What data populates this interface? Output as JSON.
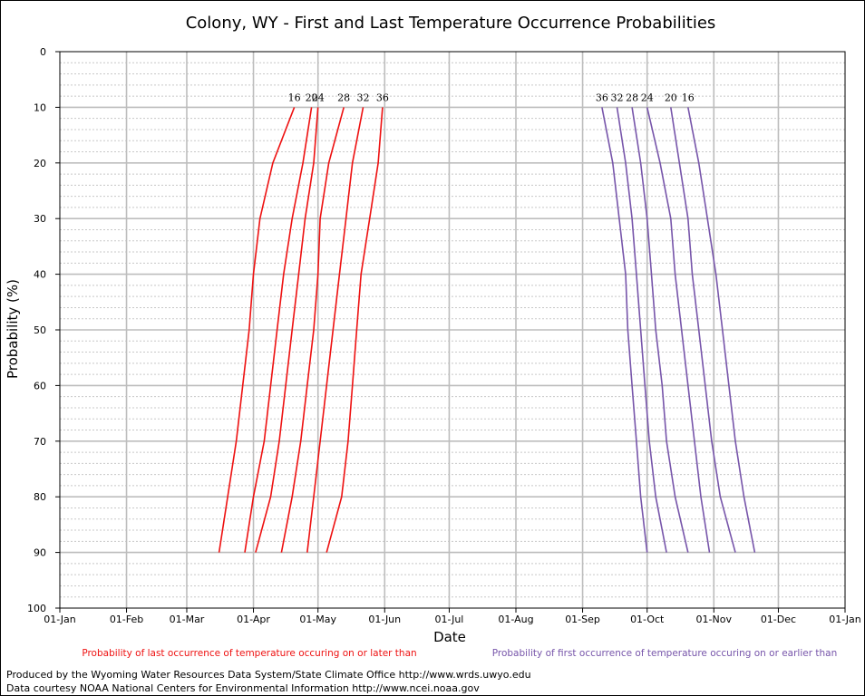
{
  "chart_data": {
    "type": "line",
    "title": "Colony, WY - First and Last Temperature Occurrence Probabilities",
    "xlabel": "Date",
    "ylabel": "Probability (%)",
    "x_ticks": [
      "01-Jan",
      "01-Feb",
      "01-Mar",
      "01-Apr",
      "01-May",
      "01-Jun",
      "01-Jul",
      "01-Aug",
      "01-Sep",
      "01-Oct",
      "01-Nov",
      "01-Dec",
      "01-Jan"
    ],
    "y_ticks": [
      "0",
      "10",
      "20",
      "30",
      "40",
      "50",
      "60",
      "70",
      "80",
      "90",
      "100"
    ],
    "y_reversed": true,
    "ylim": [
      0,
      100
    ],
    "grid": true,
    "probabilities": [
      10,
      20,
      30,
      40,
      50,
      60,
      70,
      80,
      90
    ],
    "last_occurrence": {
      "color": "#ee1111",
      "legend": "Probability of last occurrence of temperature occuring on or later than",
      "series": [
        {
          "name": "16",
          "dates": [
            "20-Apr",
            "10-Apr",
            "04-Apr",
            "01-Apr",
            "30-Mar",
            "27-Mar",
            "24-Mar",
            "20-Mar",
            "16-Mar"
          ]
        },
        {
          "name": "20",
          "dates": [
            "28-Apr",
            "24-Apr",
            "19-Apr",
            "15-Apr",
            "12-Apr",
            "09-Apr",
            "06-Apr",
            "01-Apr",
            "28-Mar"
          ]
        },
        {
          "name": "24",
          "dates": [
            "01-May",
            "29-Apr",
            "25-Apr",
            "22-Apr",
            "19-Apr",
            "16-Apr",
            "13-Apr",
            "09-Apr",
            "02-Apr"
          ]
        },
        {
          "name": "28",
          "dates": [
            "13-May",
            "06-May",
            "02-May",
            "01-May",
            "29-Apr",
            "26-Apr",
            "23-Apr",
            "19-Apr",
            "14-Apr"
          ]
        },
        {
          "name": "32",
          "dates": [
            "22-May",
            "17-May",
            "14-May",
            "11-May",
            "08-May",
            "05-May",
            "02-May",
            "29-Apr",
            "26-Apr"
          ]
        },
        {
          "name": "36",
          "dates": [
            "31-May",
            "29-May",
            "25-May",
            "21-May",
            "19-May",
            "17-May",
            "15-May",
            "12-May",
            "05-May"
          ]
        }
      ]
    },
    "first_occurrence": {
      "color": "#7755aa",
      "legend": "Probability of first occurrence of temperature occuring on or earlier than",
      "series": [
        {
          "name": "36",
          "dates": [
            "10-Sep",
            "15-Sep",
            "18-Sep",
            "21-Sep",
            "22-Sep",
            "24-Sep",
            "26-Sep",
            "28-Sep",
            "01-Oct"
          ]
        },
        {
          "name": "32",
          "dates": [
            "17-Sep",
            "21-Sep",
            "24-Sep",
            "26-Sep",
            "28-Sep",
            "30-Sep",
            "02-Oct",
            "05-Oct",
            "10-Oct"
          ]
        },
        {
          "name": "28",
          "dates": [
            "24-Sep",
            "28-Sep",
            "01-Oct",
            "03-Oct",
            "05-Oct",
            "08-Oct",
            "10-Oct",
            "14-Oct",
            "20-Oct"
          ]
        },
        {
          "name": "24",
          "dates": [
            "01-Oct",
            "07-Oct",
            "12-Oct",
            "14-Oct",
            "17-Oct",
            "20-Oct",
            "23-Oct",
            "26-Oct",
            "30-Oct"
          ]
        },
        {
          "name": "20",
          "dates": [
            "12-Oct",
            "16-Oct",
            "20-Oct",
            "22-Oct",
            "25-Oct",
            "28-Oct",
            "31-Oct",
            "04-Nov",
            "11-Nov"
          ]
        },
        {
          "name": "16",
          "dates": [
            "20-Oct",
            "25-Oct",
            "29-Oct",
            "02-Nov",
            "05-Nov",
            "08-Nov",
            "11-Nov",
            "15-Nov",
            "20-Nov"
          ]
        }
      ]
    },
    "credits": [
      "Produced by the Wyoming Water Resources Data System/State Climate Office http://www.wrds.uwyo.edu",
      "Data courtesy NOAA National Centers for Environmental Information http://www.ncei.noaa.gov"
    ]
  }
}
